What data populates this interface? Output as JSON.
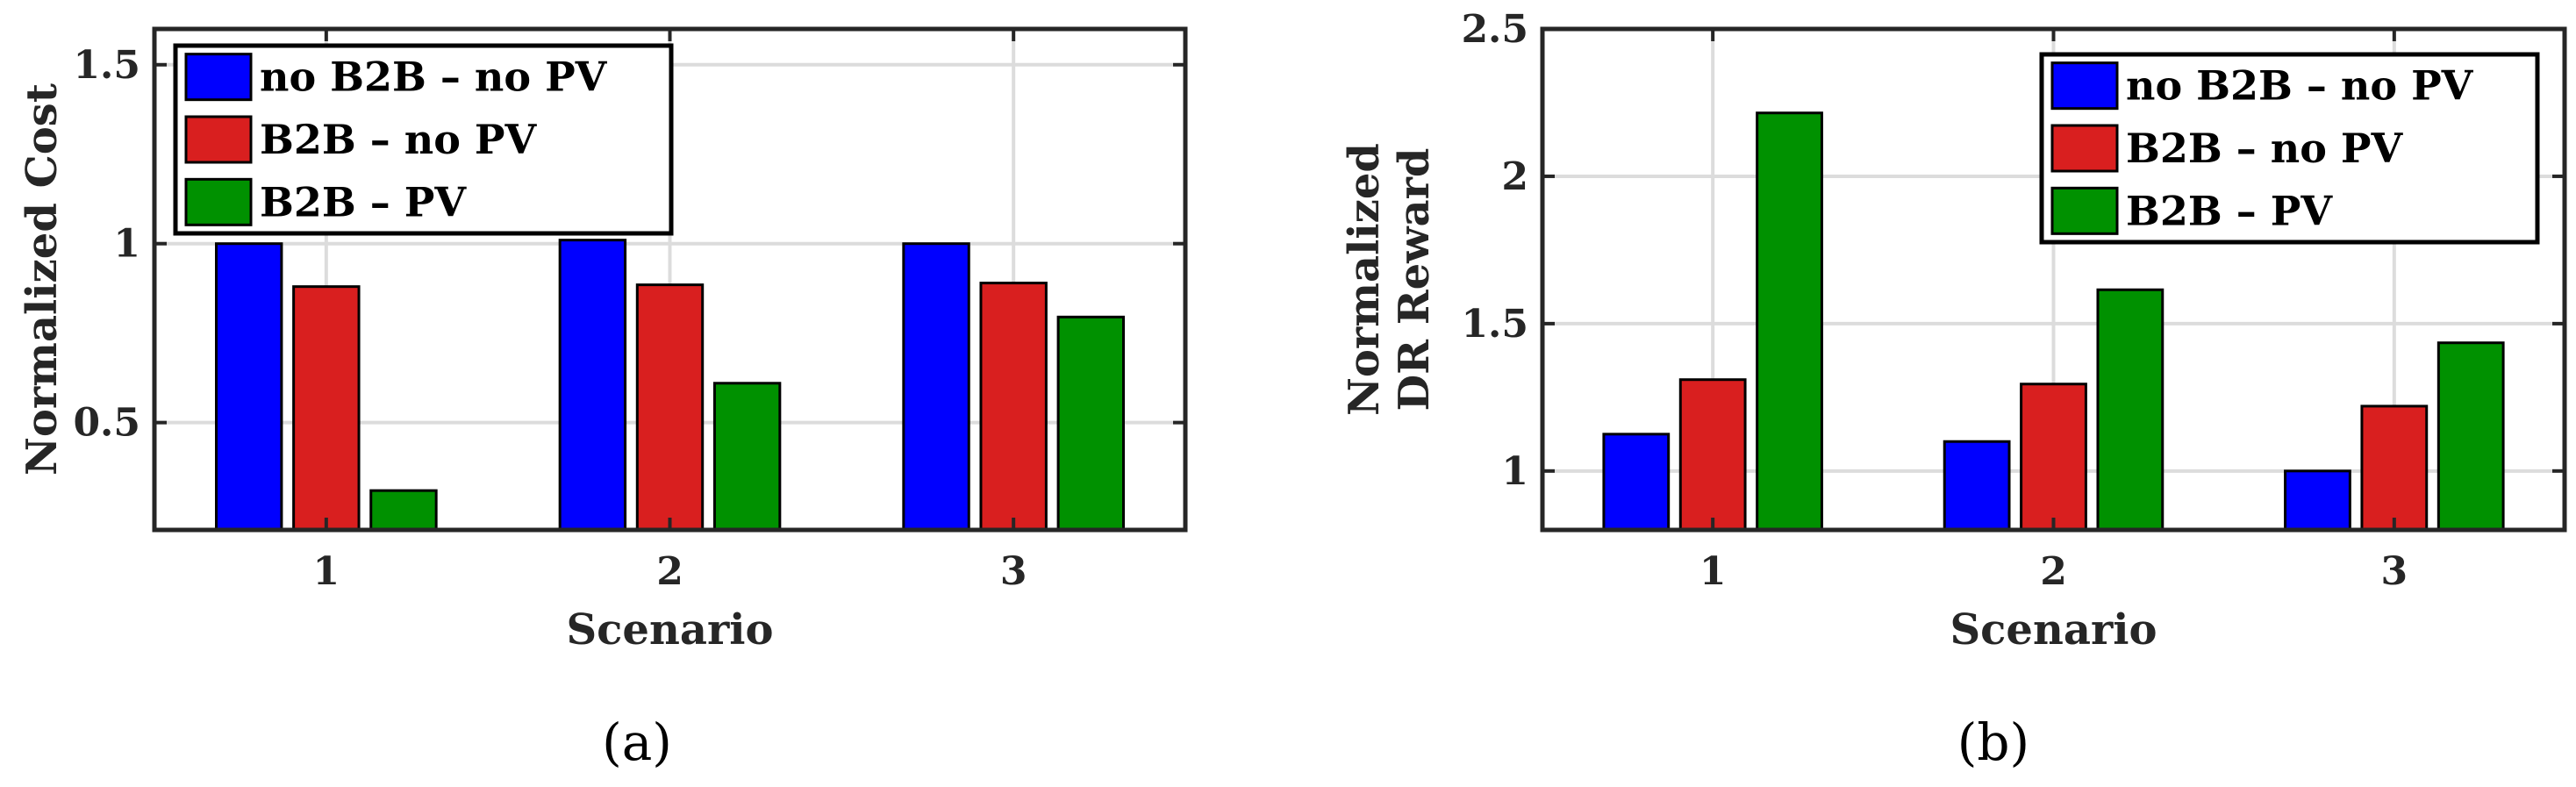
{
  "chart_data": [
    {
      "type": "bar",
      "caption": "(a)",
      "xlabel": "Scenario",
      "ylabel": [
        "Normalized Cost"
      ],
      "categories": [
        "1",
        "2",
        "3"
      ],
      "ylim": [
        0.2,
        1.6
      ],
      "yticks": [
        0.5,
        1,
        1.5
      ],
      "ytick_labels": [
        "0.5",
        "1",
        "1.5"
      ],
      "grid": true,
      "legend_position": "top-left",
      "series": [
        {
          "name": "no B2B – no PV",
          "color": "#0000ff",
          "values": [
            1.0,
            1.01,
            1.0
          ]
        },
        {
          "name": "B2B – no PV",
          "color": "#d91f1f",
          "values": [
            0.88,
            0.885,
            0.89
          ]
        },
        {
          "name": "B2B – PV",
          "color": "#009100",
          "values": [
            0.31,
            0.61,
            0.795
          ]
        }
      ]
    },
    {
      "type": "bar",
      "caption": "(b)",
      "xlabel": "Scenario",
      "ylabel": [
        "Normalized",
        "DR Reward"
      ],
      "categories": [
        "1",
        "2",
        "3"
      ],
      "ylim": [
        0.8,
        2.5
      ],
      "yticks": [
        1,
        1.5,
        2,
        2.5
      ],
      "ytick_labels": [
        "1",
        "1.5",
        "2",
        "2.5"
      ],
      "grid": true,
      "legend_position": "top-right",
      "series": [
        {
          "name": "no B2B – no PV",
          "color": "#0000ff",
          "values": [
            1.125,
            1.1,
            1.0
          ]
        },
        {
          "name": "B2B – no PV",
          "color": "#d91f1f",
          "values": [
            1.31,
            1.295,
            1.22
          ]
        },
        {
          "name": "B2B – PV",
          "color": "#009100",
          "values": [
            2.215,
            1.615,
            1.435
          ]
        }
      ]
    }
  ]
}
